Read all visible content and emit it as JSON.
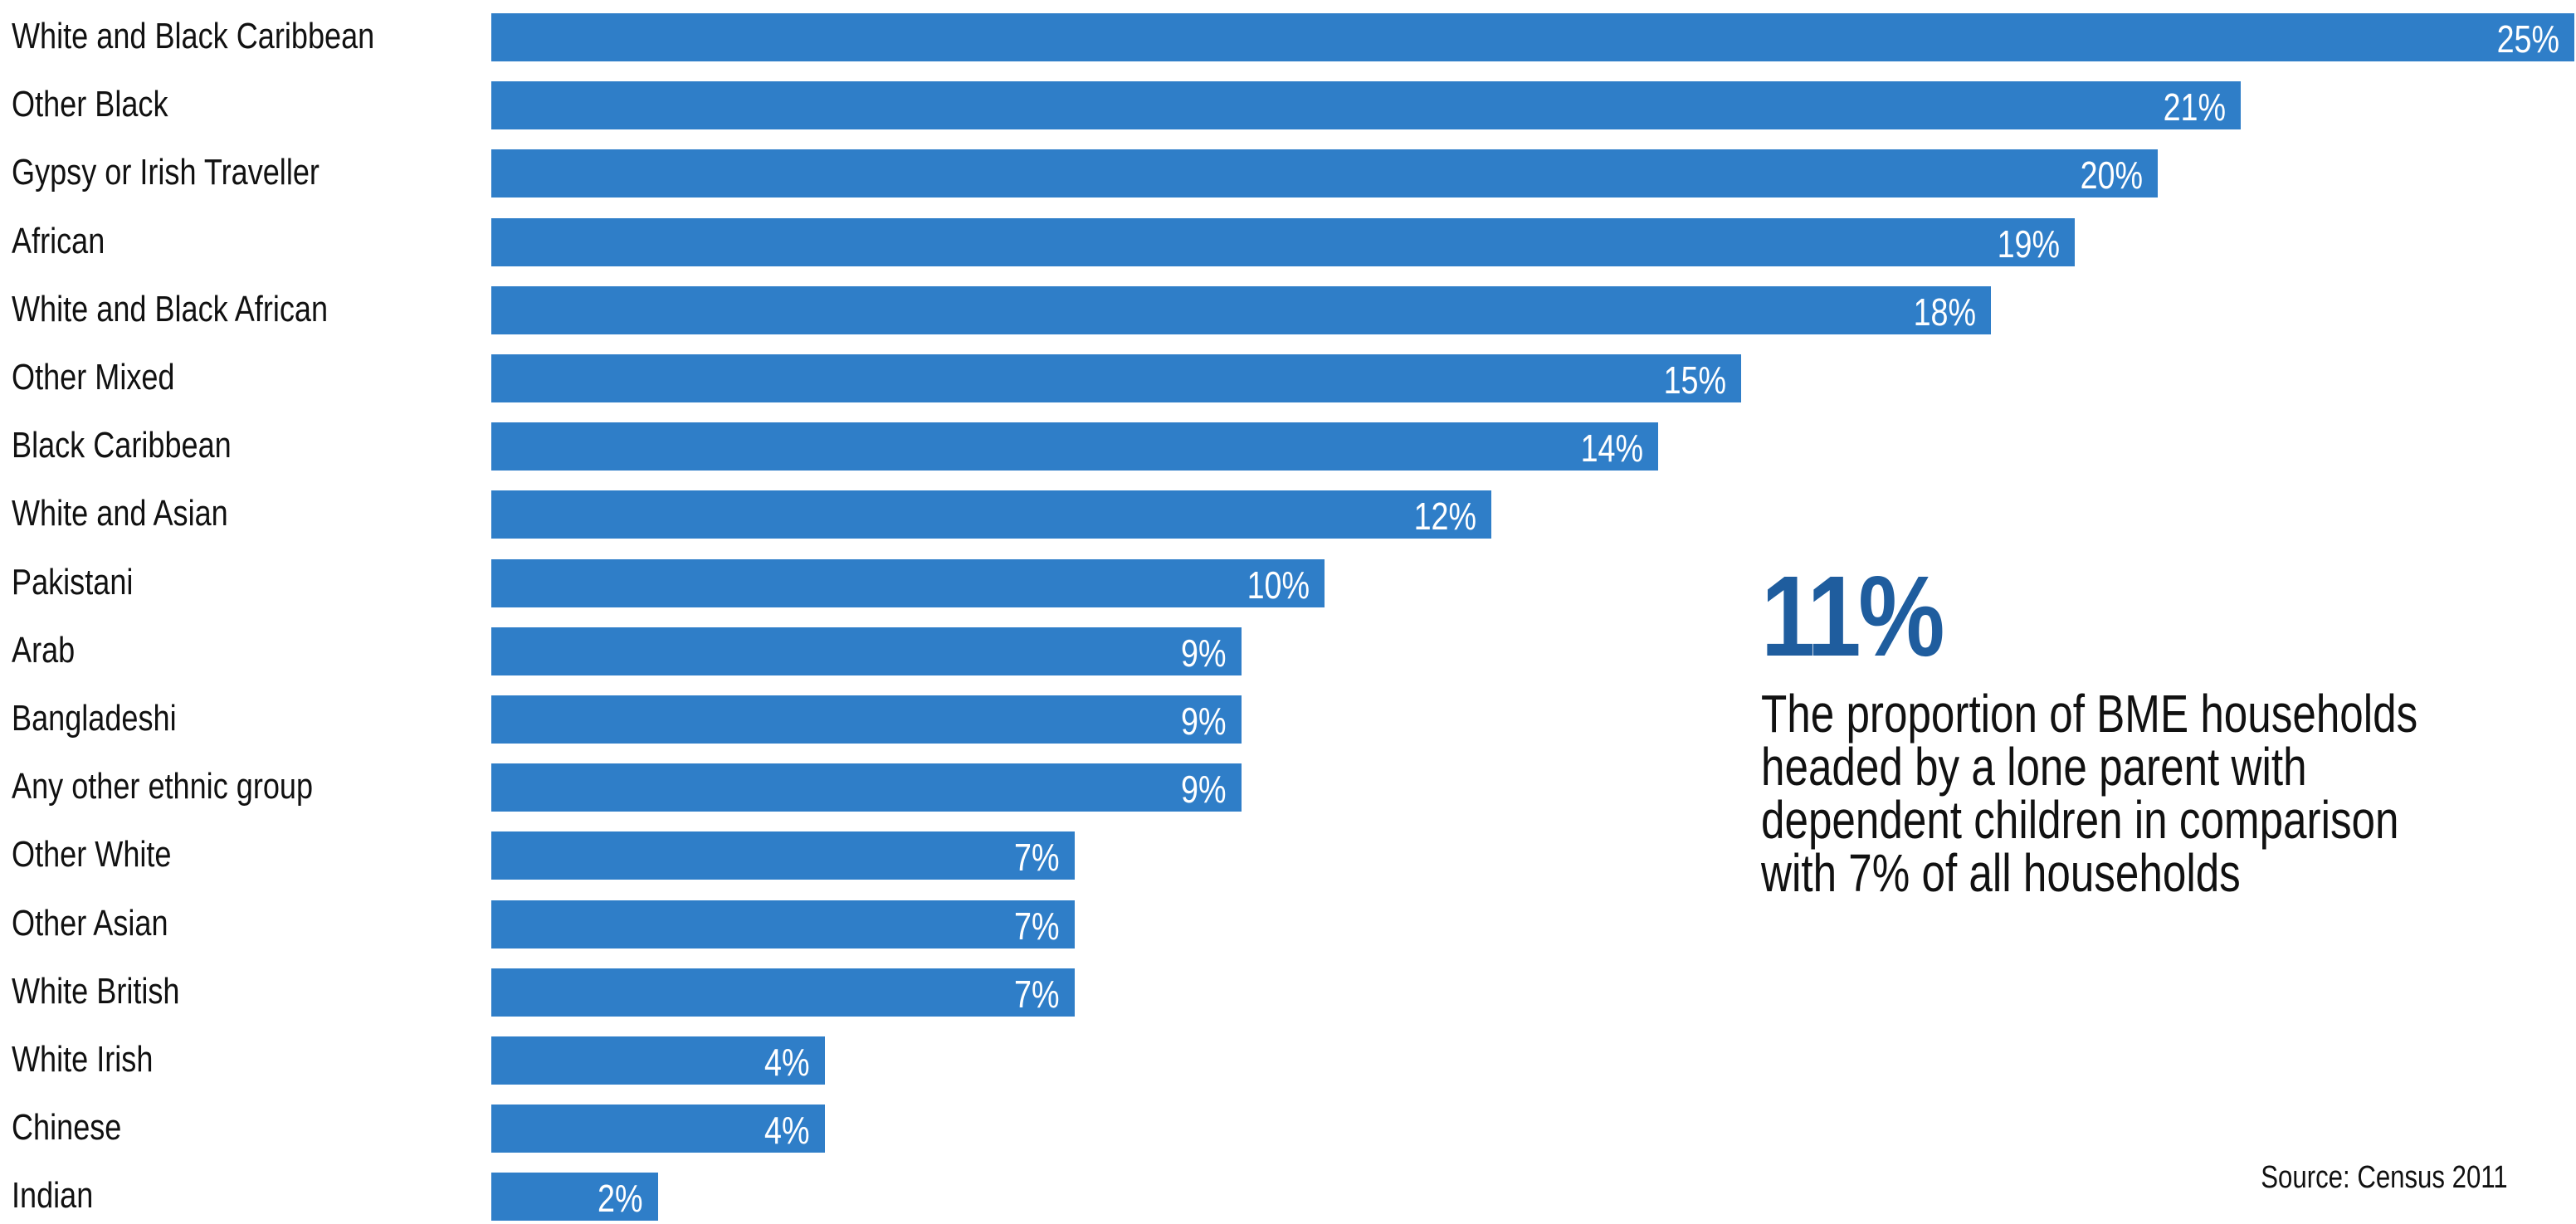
{
  "chart_data": {
    "type": "bar",
    "orientation": "horizontal",
    "categories": [
      "White and Black Caribbean",
      "Other Black",
      "Gypsy or Irish Traveller",
      "African",
      "White and Black African",
      "Other Mixed",
      "Black Caribbean",
      "White and Asian",
      "Pakistani",
      "Arab",
      "Bangladeshi",
      "Any other ethnic group",
      "Other White",
      "Other Asian",
      "White British",
      "White Irish",
      "Chinese",
      "Indian"
    ],
    "values": [
      25,
      21,
      20,
      19,
      18,
      15,
      14,
      12,
      10,
      9,
      9,
      9,
      7,
      7,
      7,
      4,
      4,
      2
    ],
    "value_labels": [
      "25%",
      "21%",
      "20%",
      "19%",
      "18%",
      "15%",
      "14%",
      "12%",
      "10%",
      "9%",
      "9%",
      "9%",
      "7%",
      "7%",
      "7%",
      "4%",
      "4%",
      "2%"
    ],
    "xlim": [
      0,
      25
    ],
    "grid": false,
    "legend": "none",
    "bar_color": "#2f7ec8"
  },
  "highlight": {
    "number": "11%",
    "text": "The proportion of BME households headed by a lone parent with dependent children in comparison with 7% of all households",
    "number_color": "#1f5d9e"
  },
  "source": "Source: Census 2011"
}
